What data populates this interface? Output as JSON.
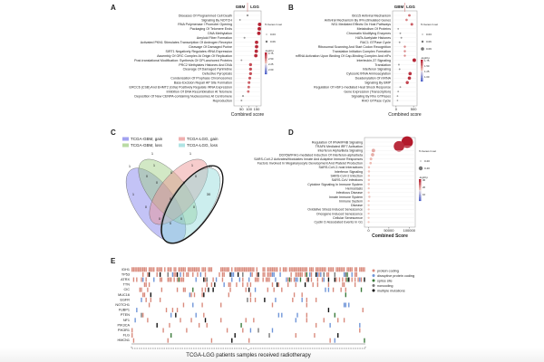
{
  "colors": {
    "dot_high": "#b2182b",
    "dot_low": "#4b5fc8",
    "protein_coding": "#d98a7c",
    "disruptive": "#6f95d8",
    "splice": "#3a7a3a",
    "noncoding": "#777777",
    "multiple": "#111111",
    "venn": [
      "#7b7bea",
      "#9ccc7e",
      "#ea8f8f",
      "#8fd9d9"
    ]
  },
  "chart_data": [
    {
      "panel": "A",
      "type": "scatter",
      "header": [
        "GBM",
        "LGG"
      ],
      "xlabel": "Combined score",
      "xticks": [
        "50",
        "100",
        "150"
      ],
      "xlim": [
        0,
        180
      ],
      "size_legend_title": "% Genes in set",
      "size_legend": [
        "0.03",
        "0.06"
      ],
      "color_legend_title": "-log10 p",
      "color_ticks": [
        "2.75",
        "2.50",
        "2.25",
        "2.00"
      ],
      "terms": [
        "Diseases Of Programmed Cell Death",
        "Signaling By NOTCH",
        "RNA Polymerase I Promoter Opening",
        "Packaging Of Telomere Ends",
        "DNA Methylation",
        "Amyloid Fiber Formation",
        "Activated PKN1 Stimulates Transcription Of Androgen Receptor",
        "Cleavage Of Damaged Purine",
        "SIRT1 Negatively Regulates rRNA Expression",
        "Assembly Of ORC Complex At Origin Of Replication",
        "Post-translational Modification: Synthesis Of GPI-anchored Proteins",
        "PRC2 Methylates Histones And DNA",
        "Cleavage Of Damaged Pyrimidine",
        "Defective Pyroptosis",
        "Condensation Of Prophase Chromosomes",
        "Base-Excision Repair AP Site Formation",
        "ERCC6 (CSB) And EHMT2 (G9a) Positively Regulate rRNA Expression",
        "Inhibition Of DNA Recombination At Telomere",
        "Deposition Of New CENPA-containing Nucleosomes At Centromere",
        "Reproduction"
      ],
      "values": [
        90,
        40,
        170,
        168,
        165,
        70,
        150,
        150,
        148,
        145,
        50,
        110,
        110,
        110,
        105,
        100,
        98,
        95,
        60,
        50
      ],
      "intensity": [
        0.3,
        0.1,
        0.95,
        0.95,
        0.95,
        0.2,
        0.9,
        0.9,
        0.9,
        0.9,
        0.1,
        0.7,
        0.7,
        0.7,
        0.65,
        0.6,
        0.55,
        0.5,
        0.2,
        0.15
      ]
    },
    {
      "panel": "B",
      "type": "scatter",
      "header": [
        "GBM",
        "LGG"
      ],
      "xlabel": "Combined score",
      "xticks": [
        "0",
        "500"
      ],
      "xlim": [
        -100,
        600
      ],
      "size_legend_title": "% Genes in set",
      "size_legend": [
        "0.03",
        "0.06",
        "0.09"
      ],
      "color_legend_title": "-log10 p",
      "color_ticks": [
        "1.75",
        "1.50",
        "1.25",
        "1.00"
      ],
      "terms": [
        "ISG15 Antiviral Mechanism",
        "Antiviral Mechanism By IFN-stimulated Genes",
        "NS1 Mediated Effects On Host Pathways",
        "Metabolism Of Proteins",
        "Chromatin Modifying Enzymes",
        "HATs Acetylate Histones",
        "RAC1 GTPase Cycle",
        "Ribosomal Scanning And Start Codon Recognition",
        "Translation Initiation Complex Formation",
        "mRNA Activation Upon Binding Of Cap-Binding Complex And eIFs",
        "Interleukin-37 Signaling",
        "Translation",
        "Interferon Signaling",
        "Cytosolic tRNA Aminoacylation",
        "Deadenylation Of mRNA",
        "Signaling By BMP",
        "Regulation Of HSF1-mediated Heat Shock Response",
        "Gene Expression (Transcription)",
        "Signaling By Rho GTPases",
        "RHO GTPase Cycle"
      ],
      "values": [
        380,
        300,
        450,
        60,
        120,
        150,
        100,
        250,
        250,
        250,
        520,
        80,
        100,
        400,
        380,
        320,
        120,
        60,
        40,
        40
      ],
      "intensity": [
        0.5,
        0.4,
        0.6,
        0.05,
        0.1,
        0.15,
        0.1,
        0.35,
        0.35,
        0.35,
        0.95,
        0.1,
        0.1,
        0.85,
        0.85,
        0.75,
        0.1,
        0.05,
        0.05,
        0.05
      ]
    },
    {
      "panel": "C",
      "type": "venn",
      "legend": [
        "TCGA-GBM, gain",
        "TCGA-GBM, loss",
        "TCGA-LGG, gain",
        "TCGA-LGG, loss"
      ],
      "set_totals": [
        "1",
        "1",
        "1",
        "30"
      ],
      "regions": {
        "gbm_gain_only": "1",
        "gbm_loss_only": "1",
        "lgg_gain_only": "1",
        "lgg_loss_only": "30",
        "intersections": "0"
      }
    },
    {
      "panel": "D",
      "type": "scatter",
      "xlabel": "Combined Score",
      "xticks": [
        "0",
        "50000",
        "100000"
      ],
      "xlim": [
        -10000,
        115000
      ],
      "size_legend_title": "% Genes in set",
      "size_legend": [
        "0.20",
        "0.40"
      ],
      "color_legend_title": "-log10 p",
      "color_ticks": [
        "30",
        "20",
        "10"
      ],
      "terms": [
        "Regulation Of IFNA/IFNB Signaling",
        "TRAF6 Mediated IRF7 Activation",
        "Interferon Alpha/Beta Signaling",
        "DDX58/IFIH1-mediated Induction Of Interferon-alpha/beta",
        "SARS-CoV-2 Activates/Modulates Innate And Adaptive Immune Responses",
        "Factors Involved In Megakaryocyte Development And Platelet Production",
        "SARS-CoV-2-host Interactions",
        "Interferon Signaling",
        "SARS-CoV-2 Infection",
        "SARS-CoV Infections",
        "Cytokine Signaling In Immune System",
        "Hemostasis",
        "Infectious Disease",
        "Innate Immune System",
        "Immune System",
        "Disease",
        "Oxidative Stress Induced Senescence",
        "Oncogene Induced Senescence",
        "Cellular Senescence",
        "Cyclin D Associated Events In G1"
      ],
      "values": [
        95000,
        75000,
        12000,
        10000,
        6000,
        5000,
        1000,
        1000,
        800,
        800,
        600,
        500,
        400,
        2000,
        500,
        300,
        400,
        300,
        300,
        200
      ],
      "pct": [
        0.45,
        0.4,
        0.08,
        0.07,
        0.04,
        0.03,
        0.02,
        0.02,
        0.02,
        0.02,
        0.02,
        0.01,
        0.01,
        0.02,
        0.01,
        0.01,
        0.01,
        0.01,
        0.01,
        0.01
      ]
    },
    {
      "panel": "E",
      "type": "heatmap",
      "genes": [
        "IDH1",
        "TP53",
        "ATRX",
        "TTN",
        "CIC",
        "MUC16",
        "EGFR",
        "NOTCH1",
        "FUBP1",
        "PTEN",
        "NF1",
        "PIK3CA",
        "PIK3R1",
        "FLG",
        "HMCN1"
      ],
      "mutation_rates": [
        0.85,
        0.5,
        0.45,
        0.15,
        0.12,
        0.08,
        0.07,
        0.08,
        0.08,
        0.06,
        0.08,
        0.06,
        0.06,
        0.05,
        0.05
      ],
      "legend": [
        "protein coding",
        "disruptive protein coding",
        "splice site",
        "noncoding",
        "multiple mutations"
      ],
      "xlabel": "TCGA-LGG patients samples received radiotherapy"
    }
  ],
  "panel_labels": [
    "A",
    "B",
    "C",
    "D",
    "E"
  ]
}
